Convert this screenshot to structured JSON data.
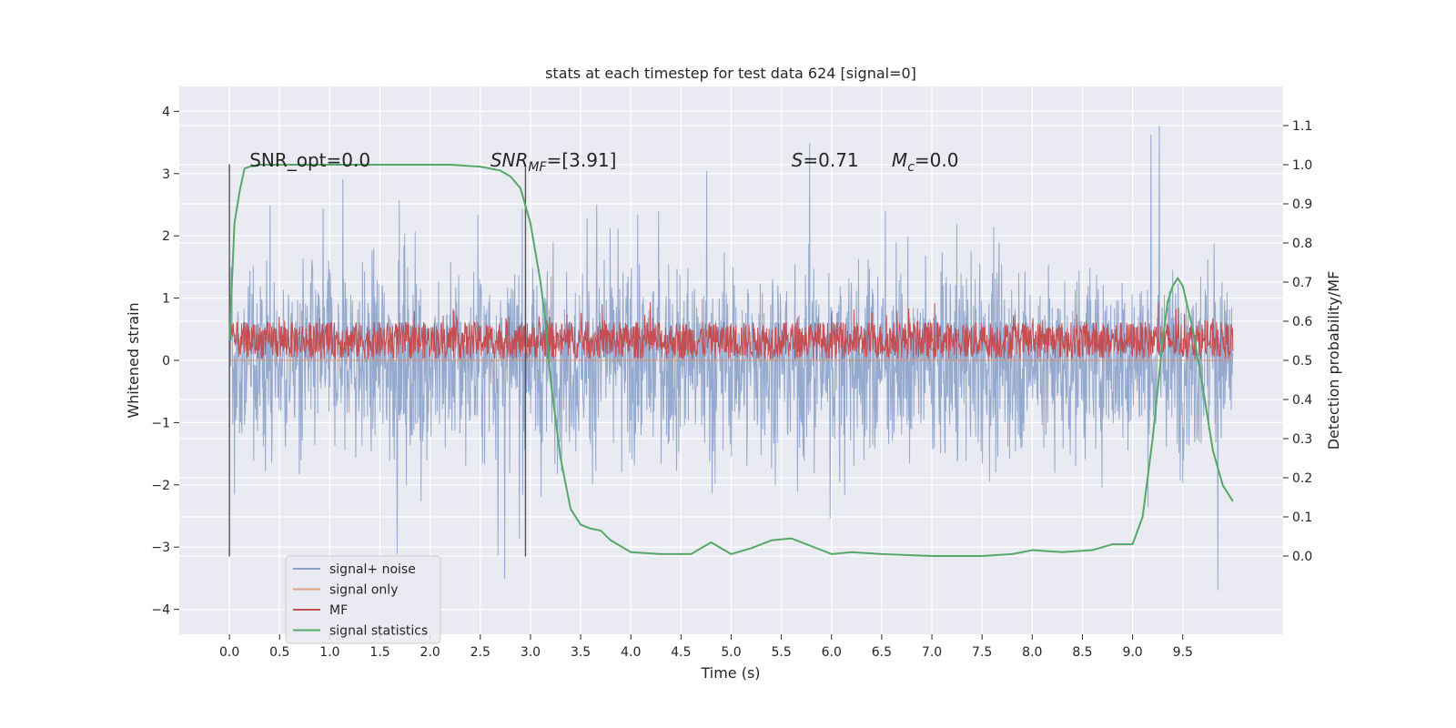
{
  "chart_data": {
    "type": "line",
    "title": "stats at each timestep for test data 624 [signal=0]",
    "xlabel": "Time (s)",
    "ylabel": "Whitened strain",
    "y2label": "Detection probability/MF",
    "xlim": [
      -0.5,
      10.5
    ],
    "ylim": [
      -4.4,
      4.4
    ],
    "y2lim": [
      -0.2,
      1.2
    ],
    "xticks": [
      "0.0",
      "0.5",
      "1.0",
      "1.5",
      "2.0",
      "2.5",
      "3.0",
      "3.5",
      "4.0",
      "4.5",
      "5.0",
      "5.5",
      "6.0",
      "6.5",
      "7.0",
      "7.5",
      "8.0",
      "8.5",
      "9.0",
      "9.5"
    ],
    "yticks": [
      "−4",
      "−3",
      "−2",
      "−1",
      "0",
      "1",
      "2",
      "3",
      "4"
    ],
    "y2ticks": [
      "0.0",
      "0.1",
      "0.2",
      "0.3",
      "0.4",
      "0.5",
      "0.6",
      "0.7",
      "0.8",
      "0.9",
      "1.0",
      "1.1"
    ],
    "grid": true,
    "legend_position": "lower-left",
    "annotations": [
      {
        "text": "SNR_opt=0.0",
        "x": 0.2,
        "y": 3.2
      },
      {
        "text": "SNR",
        "sub": "MF",
        "suffix": "=[3.91]",
        "italic": true,
        "x": 2.6,
        "y": 3.2
      },
      {
        "text": "S",
        "suffix": "=0.71",
        "italic": true,
        "x": 5.6,
        "y": 3.2
      },
      {
        "text": "M",
        "sub": "c",
        "suffix": "=0.0",
        "italic": true,
        "x": 6.6,
        "y": 3.2
      }
    ],
    "vertical_lines": [
      0.0,
      2.95
    ],
    "series": [
      {
        "name": "signal+ noise",
        "color": "#4c72b0",
        "axis": "left",
        "description": "dense noise, approx. uniform in time",
        "x_range": [
          0.0,
          10.0
        ],
        "value_range": [
          -4.0,
          4.0
        ]
      },
      {
        "name": "signal only",
        "color": "#dd8452",
        "axis": "left",
        "x": [
          0.0,
          10.0
        ],
        "y": [
          0.0,
          0.0
        ]
      },
      {
        "name": "MF",
        "color": "#c44e52",
        "axis": "left",
        "x_range": [
          0.0,
          10.0
        ],
        "value_range": [
          0.0,
          1.0
        ]
      },
      {
        "name": "signal statistics",
        "color": "#55a868",
        "axis": "right",
        "x": [
          0.0,
          0.05,
          0.1,
          0.15,
          0.2,
          0.3,
          0.5,
          1.0,
          1.5,
          2.0,
          2.2,
          2.5,
          2.7,
          2.8,
          2.9,
          3.0,
          3.1,
          3.15,
          3.2,
          3.3,
          3.4,
          3.5,
          3.6,
          3.7,
          3.8,
          4.0,
          4.3,
          4.6,
          4.8,
          5.0,
          5.2,
          5.4,
          5.6,
          5.8,
          6.0,
          6.2,
          6.5,
          7.0,
          7.5,
          7.8,
          8.0,
          8.3,
          8.6,
          8.8,
          9.0,
          9.1,
          9.2,
          9.3,
          9.35,
          9.4,
          9.45,
          9.5,
          9.6,
          9.7,
          9.8,
          9.9,
          10.0
        ],
        "y": [
          0.55,
          0.85,
          0.93,
          0.99,
          0.995,
          1.0,
          1.0,
          1.0,
          1.0,
          1.0,
          1.0,
          0.995,
          0.985,
          0.97,
          0.94,
          0.85,
          0.7,
          0.6,
          0.45,
          0.25,
          0.12,
          0.08,
          0.07,
          0.065,
          0.04,
          0.01,
          0.005,
          0.005,
          0.035,
          0.005,
          0.02,
          0.04,
          0.045,
          0.025,
          0.005,
          0.01,
          0.005,
          0.0,
          0.0,
          0.005,
          0.015,
          0.01,
          0.015,
          0.03,
          0.03,
          0.1,
          0.3,
          0.55,
          0.65,
          0.69,
          0.71,
          0.69,
          0.58,
          0.43,
          0.27,
          0.18,
          0.14
        ]
      }
    ]
  }
}
